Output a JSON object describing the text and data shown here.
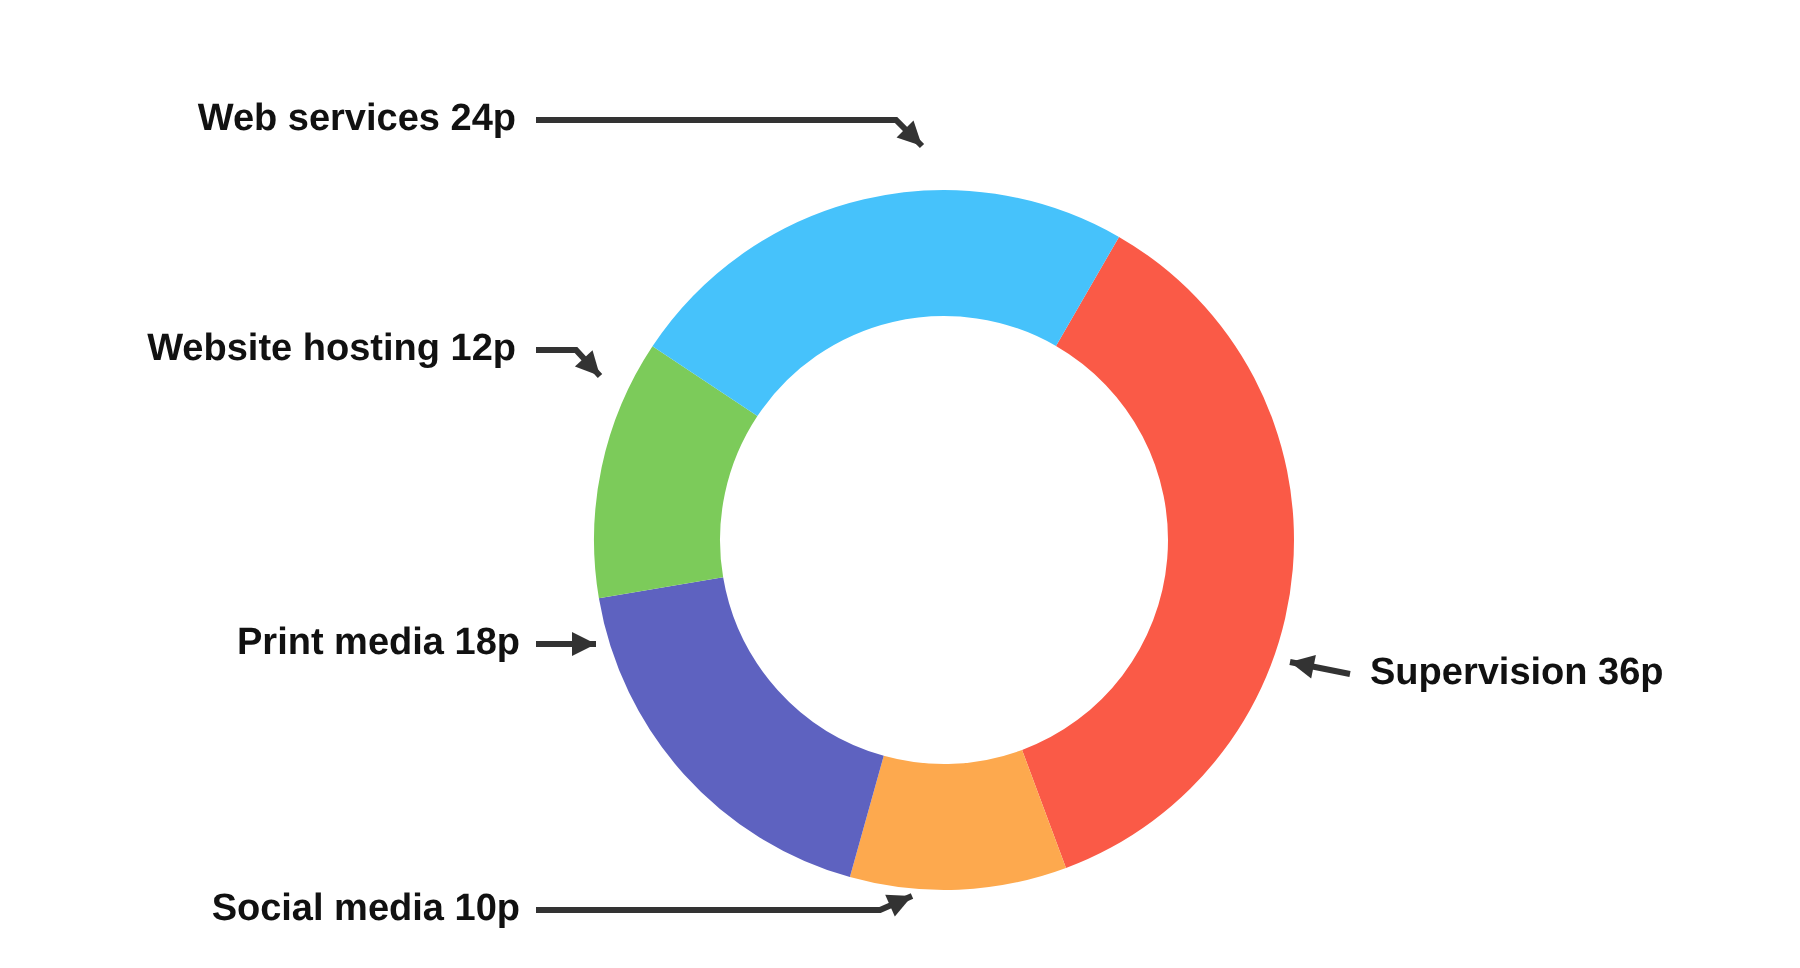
{
  "chart_data": {
    "type": "donut",
    "categories": [
      "Supervision",
      "Social media",
      "Print media",
      "Website hosting",
      "Web services"
    ],
    "values": [
      36,
      10,
      18,
      12,
      24
    ],
    "value_labels": [
      "36p",
      "10p",
      "18p",
      "12p",
      "24p"
    ],
    "colors": [
      "#fa5a47",
      "#fda94e",
      "#5e62c0",
      "#7ccb5a",
      "#46c2fb"
    ],
    "legend": false
  }
}
